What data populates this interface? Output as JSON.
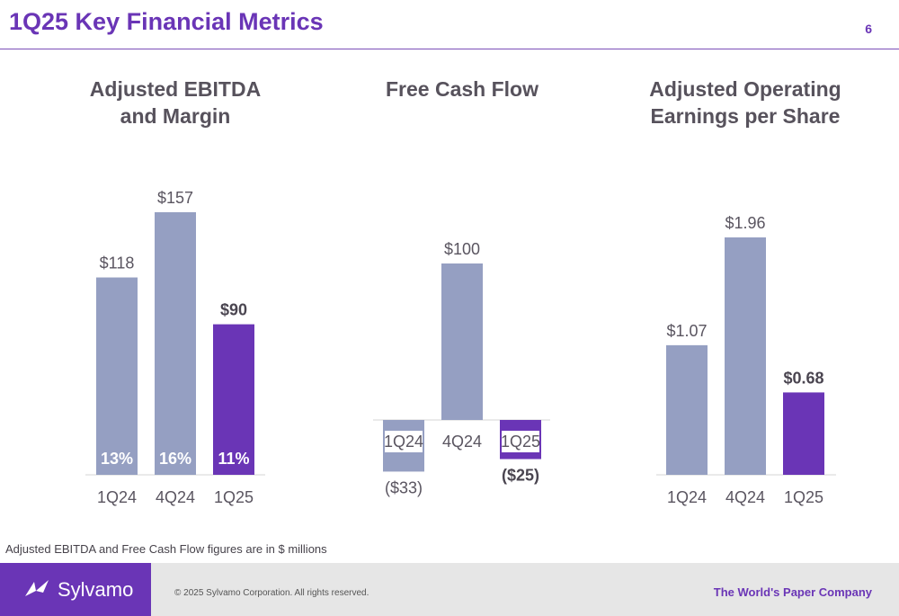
{
  "header": {
    "title": "1Q25 Key Financial Metrics",
    "page_number": "6"
  },
  "colors": {
    "accent": "#6a35b6",
    "prior_bar": "#959fc2",
    "current_bar": "#6a35b6"
  },
  "chart_data": [
    {
      "type": "bar",
      "title_lines": [
        "Adjusted EBITDA",
        "and Margin"
      ],
      "categories": [
        "1Q24",
        "4Q24",
        "1Q25"
      ],
      "values": [
        118,
        157,
        90
      ],
      "value_labels": [
        "$118",
        "$157",
        "$90"
      ],
      "margins": [
        "13%",
        "16%",
        "11%"
      ],
      "highlight_index": 2,
      "ylim": [
        0,
        157
      ]
    },
    {
      "type": "bar",
      "title_lines": [
        "Free Cash Flow"
      ],
      "categories": [
        "1Q24",
        "4Q24",
        "1Q25"
      ],
      "values": [
        -33,
        100,
        -25
      ],
      "value_labels": [
        "($33)",
        "$100",
        "($25)"
      ],
      "highlight_index": 2,
      "ylim": [
        -33,
        100
      ]
    },
    {
      "type": "bar",
      "title_lines": [
        "Adjusted Operating",
        "Earnings per Share"
      ],
      "categories": [
        "1Q24",
        "4Q24",
        "1Q25"
      ],
      "values": [
        1.07,
        1.96,
        0.68
      ],
      "value_labels": [
        "$1.07",
        "$1.96",
        "$0.68"
      ],
      "highlight_index": 2,
      "ylim": [
        0,
        1.96
      ]
    }
  ],
  "note": "Adjusted EBITDA and Free Cash Flow figures are in $ millions",
  "footer": {
    "logo_text": "Sylvamo",
    "copyright": "© 2025 Sylvamo Corporation. All rights reserved.",
    "tagline": "The World's Paper Company"
  }
}
